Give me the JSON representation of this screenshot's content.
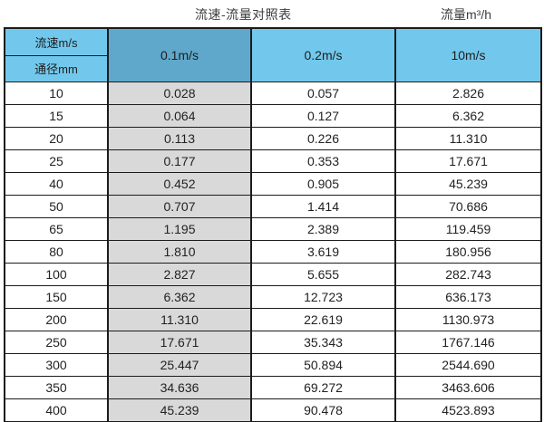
{
  "titles": {
    "main": "流速-流量对照表",
    "unit": "流量m³/h"
  },
  "chart_data": {
    "type": "table",
    "title": "流速-流量对照表",
    "unit_label": "流量m³/h",
    "corner_labels": {
      "top": "流速m/s",
      "bottom": "通径mm"
    },
    "column_headers": [
      "0.1m/s",
      "0.2m/s",
      "10m/s"
    ],
    "row_headers": [
      "10",
      "15",
      "20",
      "25",
      "40",
      "50",
      "65",
      "80",
      "100",
      "150",
      "200",
      "250",
      "300",
      "350",
      "400"
    ],
    "rows": [
      [
        "0.028",
        "0.057",
        "2.826"
      ],
      [
        "0.064",
        "0.127",
        "6.362"
      ],
      [
        "0.113",
        "0.226",
        "11.310"
      ],
      [
        "0.177",
        "0.353",
        "17.671"
      ],
      [
        "0.452",
        "0.905",
        "45.239"
      ],
      [
        "0.707",
        "1.414",
        "70.686"
      ],
      [
        "1.195",
        "2.389",
        "119.459"
      ],
      [
        "1.810",
        "3.619",
        "180.956"
      ],
      [
        "2.827",
        "5.655",
        "282.743"
      ],
      [
        "6.362",
        "12.723",
        "636.173"
      ],
      [
        "11.310",
        "22.619",
        "1130.973"
      ],
      [
        "17.671",
        "35.343",
        "1767.146"
      ],
      [
        "25.447",
        "50.894",
        "2544.690"
      ],
      [
        "34.636",
        "69.272",
        "3463.606"
      ],
      [
        "45.239",
        "90.478",
        "4523.893"
      ]
    ],
    "layout_hints": {
      "highlighted_column": "0.1m/s",
      "highlighted_column_style": "gray-fill"
    }
  },
  "colors": {
    "header_blue": "#72c8ec",
    "header_blue_dark": "#5fa8cc",
    "gray_column": "#d9d9d9",
    "border": "#1b1b1b",
    "text": "#222222"
  }
}
